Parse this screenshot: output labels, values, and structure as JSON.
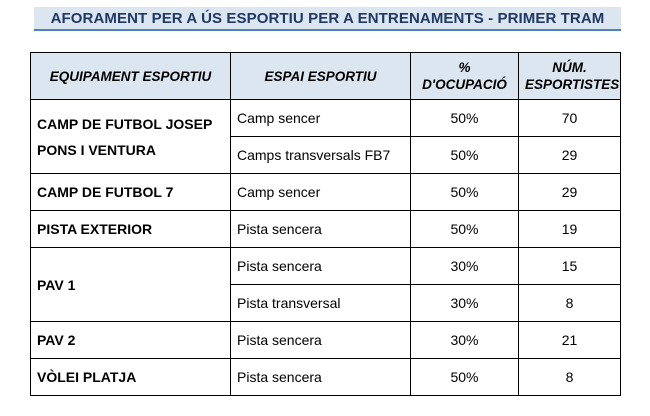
{
  "title": "AFORAMENT PER A ÚS ESPORTIU PER A ENTRENAMENTS - PRIMER TRAM",
  "table": {
    "headers": {
      "facility": "EQUIPAMENT ESPORTIU",
      "space": "ESPAI ESPORTIU",
      "occupancy_line1": "%",
      "occupancy_line2": "D'OCUPACIÓ",
      "athletes_line1": "NÚM.",
      "athletes_line2": "ESPORTISTES"
    },
    "rows": [
      {
        "facility": "CAMP DE FUTBOL JOSEP PONS I VENTURA",
        "space": "Camp sencer",
        "occupancy": "50%",
        "athletes": "70"
      },
      {
        "space": "Camps transversals FB7",
        "occupancy": "50%",
        "athletes": "29"
      },
      {
        "facility": "CAMP DE FUTBOL 7",
        "space": "Camp sencer",
        "occupancy": "50%",
        "athletes": "29"
      },
      {
        "facility": "PISTA EXTERIOR",
        "space": "Pista sencera",
        "occupancy": "50%",
        "athletes": "19"
      },
      {
        "facility": "PAV 1",
        "space": "Pista sencera",
        "occupancy": "30%",
        "athletes": "15"
      },
      {
        "space": "Pista transversal",
        "occupancy": "30%",
        "athletes": "8"
      },
      {
        "facility": "PAV 2",
        "space": "Pista sencera",
        "occupancy": "30%",
        "athletes": "21"
      },
      {
        "facility": "VÒLEI PLATJA",
        "space": "Pista sencera",
        "occupancy": "50%",
        "athletes": "8"
      }
    ]
  }
}
